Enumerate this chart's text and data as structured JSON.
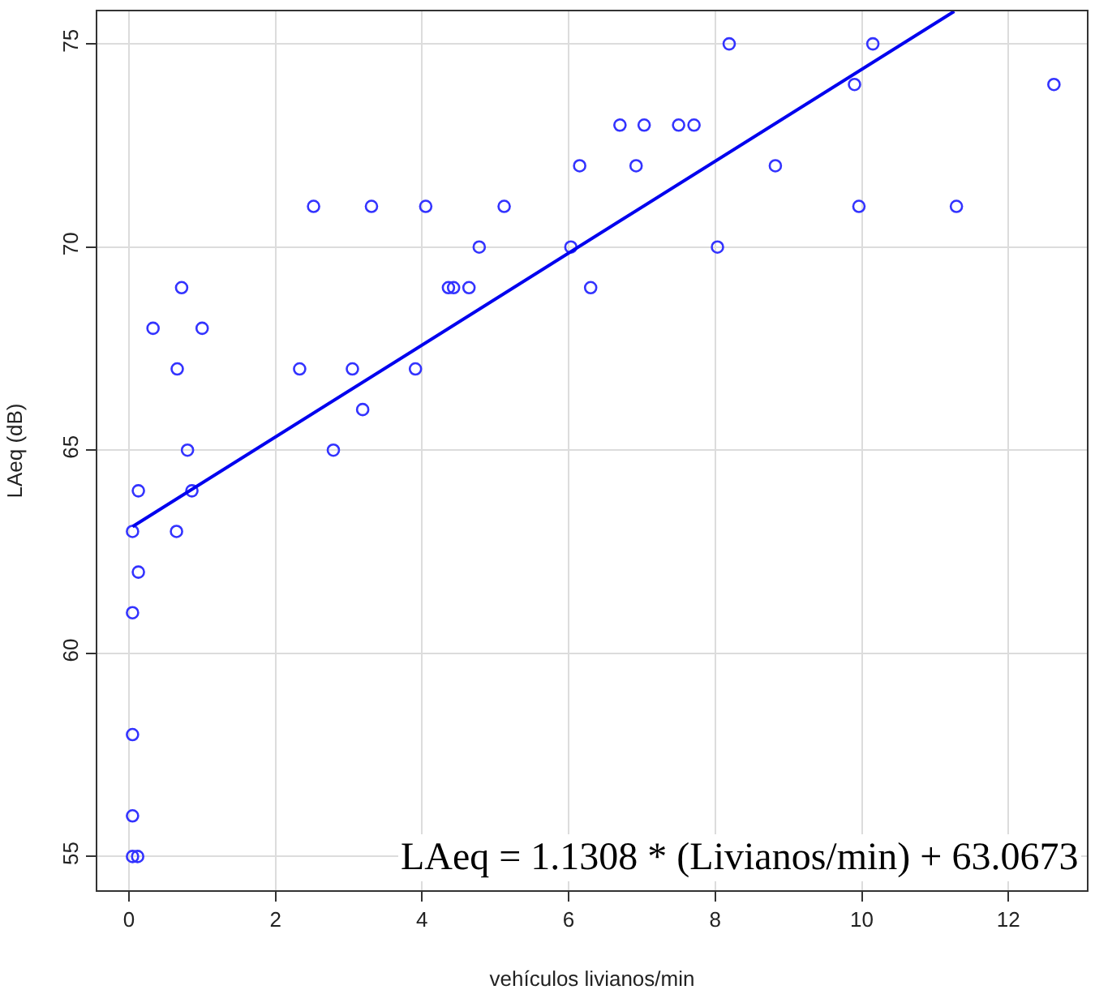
{
  "chart_data": {
    "type": "scatter",
    "xlabel": "vehículos livianos/min",
    "ylabel": "LAeq (dB)",
    "xlim": [
      -0.43,
      13.07
    ],
    "ylim": [
      54.17,
      75.8
    ],
    "xticks": [
      0,
      2,
      4,
      6,
      8,
      10,
      12
    ],
    "yticks": [
      55,
      60,
      65,
      70,
      75
    ],
    "grid": true,
    "marker": "circle",
    "annotations": [
      "LAeq = 1.1308 * (Livianos/min) + 63.0673"
    ],
    "series": [
      {
        "color": "#3333ff",
        "x": [
          8.19,
          10.15,
          9.9,
          12.62,
          6.7,
          7.03,
          7.5,
          7.71,
          6.15,
          6.92,
          8.82,
          2.52,
          3.31,
          4.05,
          5.12,
          9.96,
          11.29,
          4.78,
          6.03,
          8.03,
          4.36,
          4.43,
          4.64,
          6.3,
          0.72,
          0.33,
          1.0,
          0.66,
          2.33,
          3.05,
          3.91,
          3.19,
          0.8,
          2.79,
          0.13,
          0.86,
          0.05,
          0.65,
          0.13,
          0.05,
          0.05,
          0.05,
          0.05,
          0.12
        ],
        "values": [
          75,
          75,
          74,
          74,
          73,
          73,
          73,
          73,
          72,
          72,
          72,
          71,
          71,
          71,
          71,
          71,
          71,
          70,
          70,
          70,
          69,
          69,
          69,
          69,
          69,
          68,
          68,
          67,
          67,
          67,
          67,
          66,
          65,
          65,
          64,
          64,
          63,
          63,
          62,
          61,
          58,
          56,
          55,
          55
        ]
      },
      {
        "type": "line",
        "marker": "none",
        "color": "#0000ee",
        "line_style": "solid",
        "x": [
          0.05,
          11.26
        ],
        "values": [
          63.12,
          75.8
        ]
      }
    ]
  }
}
